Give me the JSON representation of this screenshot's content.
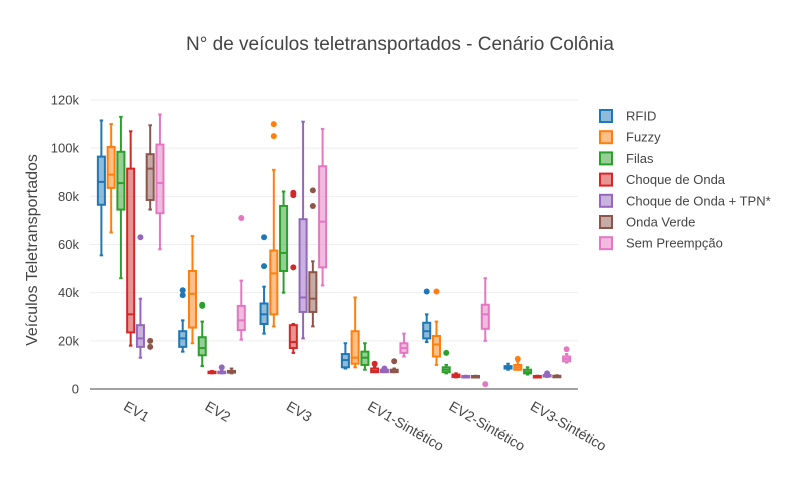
{
  "chart_data": {
    "type": "box",
    "title": "N° de veículos teletransportados - Cenário Colônia",
    "xlabel": "",
    "ylabel": "Veículos Teletransportados",
    "ylim": [
      0,
      120000
    ],
    "yticks": [
      0,
      20000,
      40000,
      60000,
      80000,
      100000,
      120000
    ],
    "ytick_labels": [
      "0",
      "20k",
      "40k",
      "60k",
      "80k",
      "100k",
      "120k"
    ],
    "grid": true,
    "legend_position": "right",
    "categories": [
      "EV1",
      "EV2",
      "EV3",
      "EV1-Sintético",
      "EV2-Sintético",
      "EV3-Sintético"
    ],
    "series": [
      {
        "name": "RFID",
        "color": "#1f77b4",
        "boxes": [
          {
            "min": 55500,
            "q1": 76500,
            "median": 86000,
            "q3": 96500,
            "max": 111500,
            "outliers": []
          },
          {
            "min": 15500,
            "q1": 17500,
            "median": 21000,
            "q3": 24000,
            "max": 28500,
            "outliers": [
              39000,
              41000
            ]
          },
          {
            "min": 23000,
            "q1": 27000,
            "median": 31000,
            "q3": 35500,
            "max": 42500,
            "outliers": [
              51000,
              63000
            ]
          },
          {
            "min": 8500,
            "q1": 9000,
            "median": 12000,
            "q3": 14500,
            "max": 19000,
            "outliers": []
          },
          {
            "min": 19500,
            "q1": 21000,
            "median": 24000,
            "q3": 27500,
            "max": 31000,
            "outliers": [
              40500
            ]
          },
          {
            "min": 8000,
            "q1": 8500,
            "median": 9000,
            "q3": 9500,
            "max": 10500,
            "outliers": []
          }
        ]
      },
      {
        "name": "Fuzzy",
        "color": "#ff7f0e",
        "boxes": [
          {
            "min": 65000,
            "q1": 83500,
            "median": 89000,
            "q3": 100500,
            "max": 110000,
            "outliers": []
          },
          {
            "min": 19000,
            "q1": 25500,
            "median": 39500,
            "q3": 49000,
            "max": 63500,
            "outliers": []
          },
          {
            "min": 26000,
            "q1": 31000,
            "median": 48000,
            "q3": 57500,
            "max": 91000,
            "outliers": [
              105000,
              110000
            ]
          },
          {
            "min": 9000,
            "q1": 10500,
            "median": 13000,
            "q3": 24000,
            "max": 38000,
            "outliers": []
          },
          {
            "min": 10000,
            "q1": 13500,
            "median": 18500,
            "q3": 22000,
            "max": 28000,
            "outliers": [
              40500
            ]
          },
          {
            "min": 8000,
            "q1": 8000,
            "median": 9000,
            "q3": 10000,
            "max": 11500,
            "outliers": [
              12500
            ]
          }
        ]
      },
      {
        "name": "Filas",
        "color": "#2ca02c",
        "boxes": [
          {
            "min": 46000,
            "q1": 74500,
            "median": 85500,
            "q3": 98500,
            "max": 113000,
            "outliers": []
          },
          {
            "min": 9500,
            "q1": 14000,
            "median": 17000,
            "q3": 21500,
            "max": 28000,
            "outliers": [
              34500,
              35000
            ]
          },
          {
            "min": 40000,
            "q1": 49000,
            "median": 56500,
            "q3": 76000,
            "max": 82000,
            "outliers": []
          },
          {
            "min": 8000,
            "q1": 10000,
            "median": 13000,
            "q3": 15500,
            "max": 19000,
            "outliers": []
          },
          {
            "min": 6500,
            "q1": 7000,
            "median": 8000,
            "q3": 9000,
            "max": 10000,
            "outliers": [
              15000
            ]
          },
          {
            "min": 6000,
            "q1": 6500,
            "median": 7000,
            "q3": 8000,
            "max": 9000,
            "outliers": []
          }
        ]
      },
      {
        "name": "Choque de Onda",
        "color": "#d62728",
        "boxes": [
          {
            "min": 18000,
            "q1": 23500,
            "median": 31000,
            "q3": 91500,
            "max": 107000,
            "outliers": []
          },
          {
            "min": 6500,
            "q1": 6800,
            "median": 7000,
            "q3": 7200,
            "max": 7500,
            "outliers": []
          },
          {
            "min": 15000,
            "q1": 17000,
            "median": 19500,
            "q3": 26500,
            "max": 27000,
            "outliers": [
              50500,
              80500,
              81500
            ]
          },
          {
            "min": 7000,
            "q1": 7000,
            "median": 7500,
            "q3": 8500,
            "max": 9000,
            "outliers": [
              10500
            ]
          },
          {
            "min": 4800,
            "q1": 5000,
            "median": 5500,
            "q3": 6000,
            "max": 6500,
            "outliers": []
          },
          {
            "min": 5000,
            "q1": 5000,
            "median": 5200,
            "q3": 5400,
            "max": 5500,
            "outliers": []
          }
        ]
      },
      {
        "name": "Choque de Onda + TPN*",
        "color": "#9467bd",
        "boxes": [
          {
            "min": 13000,
            "q1": 17500,
            "median": 21000,
            "q3": 26500,
            "max": 37500,
            "outliers": [
              63000
            ]
          },
          {
            "min": 6500,
            "q1": 6800,
            "median": 7000,
            "q3": 7200,
            "max": 7500,
            "outliers": [
              9000
            ]
          },
          {
            "min": 21000,
            "q1": 32000,
            "median": 38000,
            "q3": 70500,
            "max": 111000,
            "outliers": []
          },
          {
            "min": 7000,
            "q1": 7000,
            "median": 7500,
            "q3": 8000,
            "max": 8500,
            "outliers": [
              8500
            ]
          },
          {
            "min": 4800,
            "q1": 5000,
            "median": 5200,
            "q3": 5400,
            "max": 5500,
            "outliers": []
          },
          {
            "min": 5000,
            "q1": 5200,
            "median": 5500,
            "q3": 5800,
            "max": 6000,
            "outliers": [
              6500
            ]
          }
        ]
      },
      {
        "name": "Onda Verde",
        "color": "#8c564b",
        "boxes": [
          {
            "min": 74500,
            "q1": 78500,
            "median": 91500,
            "q3": 97500,
            "max": 109500,
            "outliers": [
              17500,
              20000
            ]
          },
          {
            "min": 6500,
            "q1": 6800,
            "median": 7000,
            "q3": 7500,
            "max": 8500,
            "outliers": []
          },
          {
            "min": 26000,
            "q1": 32000,
            "median": 37500,
            "q3": 48500,
            "max": 53000,
            "outliers": [
              76000,
              82500
            ]
          },
          {
            "min": 7000,
            "q1": 7000,
            "median": 7500,
            "q3": 8000,
            "max": 8500,
            "outliers": [
              11500
            ]
          },
          {
            "min": 4800,
            "q1": 5000,
            "median": 5200,
            "q3": 5400,
            "max": 5500,
            "outliers": []
          },
          {
            "min": 5000,
            "q1": 5200,
            "median": 5300,
            "q3": 5500,
            "max": 5700,
            "outliers": []
          }
        ]
      },
      {
        "name": "Sem Preempção",
        "color": "#e377c2",
        "boxes": [
          {
            "min": 58000,
            "q1": 73000,
            "median": 85500,
            "q3": 101500,
            "max": 114000,
            "outliers": []
          },
          {
            "min": 20500,
            "q1": 24500,
            "median": 28500,
            "q3": 34500,
            "max": 45000,
            "outliers": [
              71000
            ]
          },
          {
            "min": 43000,
            "q1": 50500,
            "median": 69500,
            "q3": 92500,
            "max": 108000,
            "outliers": []
          },
          {
            "min": 13500,
            "q1": 15000,
            "median": 17000,
            "q3": 19000,
            "max": 23000,
            "outliers": []
          },
          {
            "min": 20000,
            "q1": 25000,
            "median": 31000,
            "q3": 35000,
            "max": 46000,
            "outliers": [
              2000
            ]
          },
          {
            "min": 11000,
            "q1": 11500,
            "median": 12500,
            "q3": 13500,
            "max": 14500,
            "outliers": [
              16500
            ]
          }
        ]
      }
    ]
  }
}
